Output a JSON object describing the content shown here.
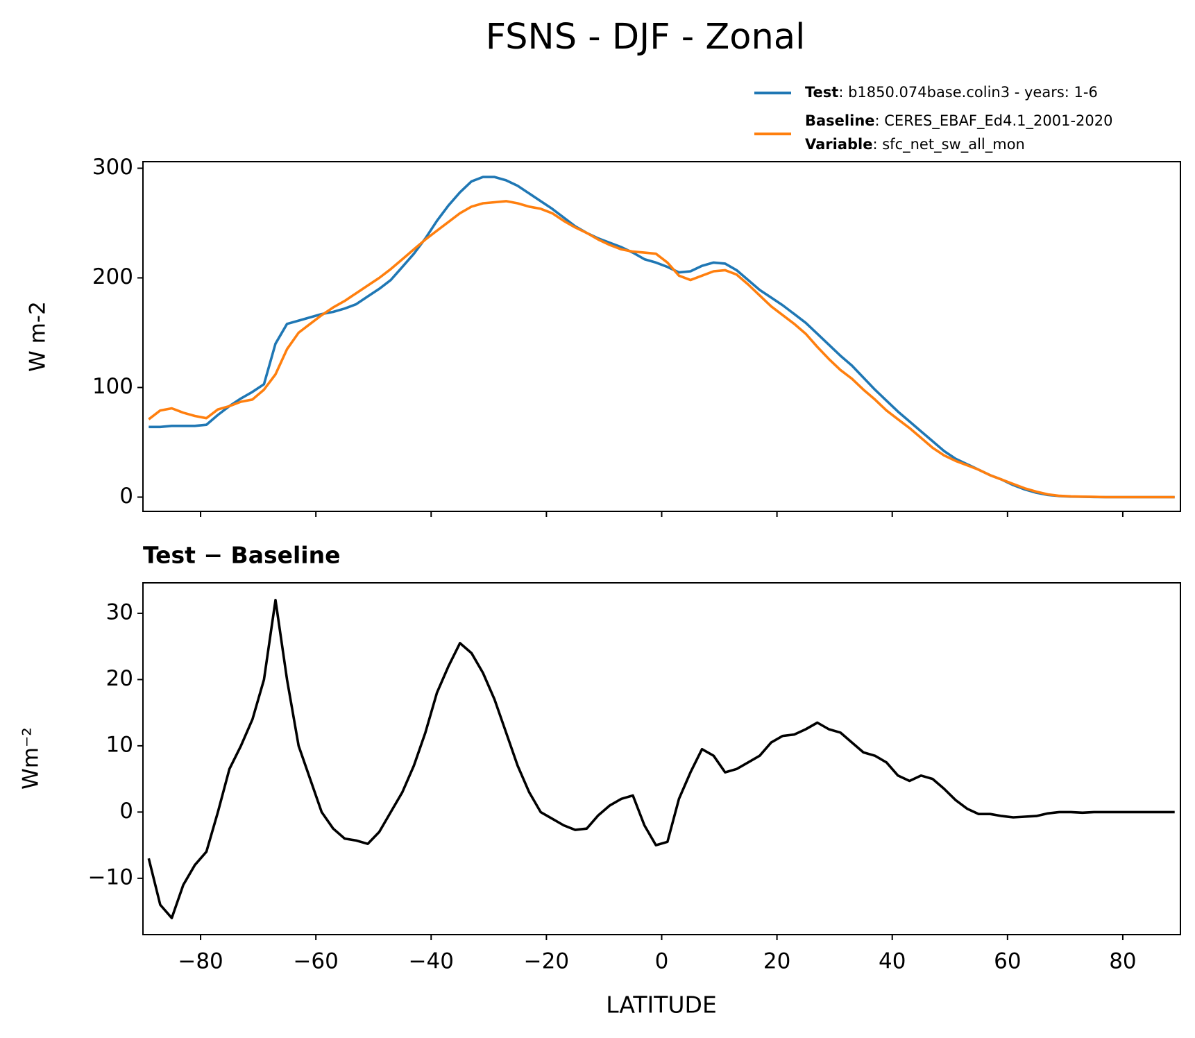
{
  "chart_data": [
    {
      "type": "line",
      "title": "FSNS - DJF - Zonal",
      "ylabel": "W m-2",
      "x": [
        -89,
        -87,
        -85,
        -83,
        -81,
        -79,
        -77,
        -75,
        -73,
        -71,
        -69,
        -67,
        -65,
        -63,
        -61,
        -59,
        -57,
        -55,
        -53,
        -51,
        -49,
        -47,
        -45,
        -43,
        -41,
        -39,
        -37,
        -35,
        -33,
        -31,
        -29,
        -27,
        -25,
        -23,
        -21,
        -19,
        -17,
        -15,
        -13,
        -11,
        -9,
        -7,
        -5,
        -3,
        -1,
        1,
        3,
        5,
        7,
        9,
        11,
        13,
        15,
        17,
        19,
        21,
        23,
        25,
        27,
        29,
        31,
        33,
        35,
        37,
        39,
        41,
        43,
        45,
        47,
        49,
        51,
        53,
        55,
        57,
        59,
        61,
        63,
        65,
        67,
        69,
        71,
        73,
        75,
        77,
        79,
        81,
        83,
        85,
        87,
        89
      ],
      "series": [
        {
          "name": "Test",
          "description": ": b1850.074base.colin3 - years: 1-6",
          "color": "#1f77b4",
          "values": [
            64,
            64,
            65,
            65,
            65,
            66,
            75,
            83,
            90,
            96,
            103,
            140,
            158,
            161,
            164,
            167,
            169,
            172,
            176,
            183,
            190,
            198,
            210,
            222,
            236,
            252,
            266,
            278,
            288,
            292,
            292,
            289,
            284,
            277,
            270,
            263,
            255,
            247,
            241,
            236,
            232,
            228,
            223,
            217,
            214,
            210,
            205,
            206,
            211,
            214,
            213,
            207,
            198,
            189,
            182,
            175,
            167,
            159,
            149,
            139,
            129,
            120,
            109,
            98,
            88,
            78,
            69,
            60,
            51,
            42,
            35,
            30,
            25,
            20,
            16,
            11,
            7,
            4,
            2,
            1,
            0.5,
            0.3,
            0.1,
            0,
            0,
            0,
            0,
            0,
            0,
            0
          ]
        },
        {
          "name": "Baseline",
          "description": ": CERES_EBAF_Ed4.1_2001-2020",
          "color": "#ff7f0e",
          "values": [
            71,
            79,
            81,
            77,
            74,
            72,
            80,
            83,
            87,
            89,
            98,
            112,
            135,
            150,
            158,
            166,
            173,
            179,
            186,
            193,
            200,
            208,
            217,
            226,
            235,
            243,
            251,
            259,
            265,
            268,
            269,
            270,
            268,
            265,
            263,
            259,
            252,
            246,
            241,
            235,
            230,
            226,
            224,
            223,
            222,
            214,
            202,
            198,
            202,
            206,
            207,
            203,
            194,
            184,
            174,
            166,
            158,
            149,
            137,
            126,
            116,
            108,
            98,
            89,
            79,
            71,
            63,
            54,
            45,
            38,
            33,
            29,
            25,
            20,
            16,
            12,
            8,
            5,
            2.5,
            1.2,
            0.7,
            0.4,
            0.2,
            0,
            0,
            0,
            0,
            0,
            0,
            0
          ]
        }
      ],
      "legend_extra": {
        "name": "Variable",
        "description": ": sfc_net_sw_all_mon"
      },
      "xlim": [
        -90,
        90
      ],
      "xticks": [
        -80,
        -60,
        -40,
        -20,
        0,
        20,
        40,
        60,
        80
      ],
      "ylim": [
        -13,
        306
      ],
      "yticks": [
        0,
        100,
        200,
        300
      ]
    },
    {
      "type": "line",
      "title": "Test − Baseline",
      "ylabel": "Wm⁻²",
      "xlabel": "LATITUDE",
      "color": "#000000",
      "x": [
        -89,
        -87,
        -85,
        -83,
        -81,
        -79,
        -77,
        -75,
        -73,
        -71,
        -69,
        -67,
        -65,
        -63,
        -61,
        -59,
        -57,
        -55,
        -53,
        -51,
        -49,
        -47,
        -45,
        -43,
        -41,
        -39,
        -37,
        -35,
        -33,
        -31,
        -29,
        -27,
        -25,
        -23,
        -21,
        -19,
        -17,
        -15,
        -13,
        -11,
        -9,
        -7,
        -5,
        -3,
        -1,
        1,
        3,
        5,
        7,
        9,
        11,
        13,
        15,
        17,
        19,
        21,
        23,
        25,
        27,
        29,
        31,
        33,
        35,
        37,
        39,
        41,
        43,
        45,
        47,
        49,
        51,
        53,
        55,
        57,
        59,
        61,
        63,
        65,
        67,
        69,
        71,
        73,
        75,
        77,
        79,
        81,
        83,
        85,
        87,
        89
      ],
      "values": [
        -7,
        -14,
        -16,
        -11,
        -8,
        -6,
        0,
        6.5,
        10,
        14,
        20,
        32,
        20,
        10,
        5,
        0,
        -2.5,
        -4,
        -4.3,
        -4.8,
        -3,
        0,
        3,
        7,
        12,
        18,
        22,
        25.5,
        24,
        21,
        17,
        12,
        7,
        3,
        0,
        -1,
        -2,
        -2.7,
        -2.5,
        -0.5,
        1,
        2,
        2.5,
        -2,
        -5,
        -4.5,
        2,
        6,
        9.5,
        8.5,
        6,
        6.5,
        7.5,
        8.5,
        10.5,
        11.5,
        11.7,
        12.5,
        13.5,
        12.5,
        12,
        10.5,
        9,
        8.5,
        7.5,
        5.5,
        4.7,
        5.5,
        5,
        3.5,
        1.8,
        0.5,
        -0.3,
        -0.3,
        -0.6,
        -0.8,
        -0.7,
        -0.6,
        -0.2,
        0,
        0,
        -0.1,
        0,
        0,
        0,
        0,
        0,
        0,
        0,
        0
      ],
      "xlim": [
        -90,
        90
      ],
      "xticks": [
        {
          "value": -80,
          "label": "−80"
        },
        {
          "value": -60,
          "label": "−60"
        },
        {
          "value": -40,
          "label": "−40"
        },
        {
          "value": -20,
          "label": "−20"
        },
        0,
        20,
        40,
        60,
        80
      ],
      "ylim": [
        -18.5,
        34.6
      ],
      "yticks": [
        {
          "value": -10,
          "label": "−10"
        },
        0,
        10,
        20,
        30
      ]
    }
  ]
}
